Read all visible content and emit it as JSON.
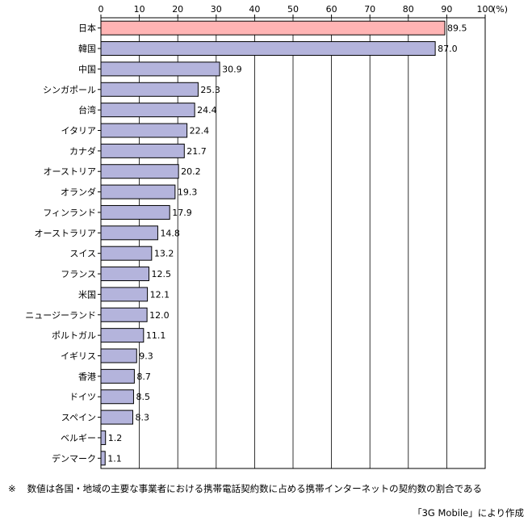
{
  "chart_data": {
    "type": "bar",
    "orientation": "horizontal",
    "categories": [
      "日本",
      "韓国",
      "中国",
      "シンガポール",
      "台湾",
      "イタリア",
      "カナダ",
      "オーストリア",
      "オランダ",
      "フィンランド",
      "オーストラリア",
      "スイス",
      "フランス",
      "米国",
      "ニュージーランド",
      "ポルトガル",
      "イギリス",
      "香港",
      "ドイツ",
      "スペイン",
      "ベルギー",
      "デンマーク"
    ],
    "values": [
      89.5,
      87.0,
      30.9,
      25.3,
      24.4,
      22.4,
      21.7,
      20.2,
      19.3,
      17.9,
      14.8,
      13.2,
      12.5,
      12.1,
      12.0,
      11.1,
      9.3,
      8.7,
      8.5,
      8.3,
      1.2,
      1.1
    ],
    "value_labels": [
      "89.5",
      "87.0",
      "30.9",
      "25.3",
      "24.4",
      "22.4",
      "21.7",
      "20.2",
      "19.3",
      "17.9",
      "14.8",
      "13.2",
      "12.5",
      "12.1",
      "12.0",
      "11.1",
      "9.3",
      "8.7",
      "8.5",
      "8.3",
      "1.2",
      "1.1"
    ],
    "xlim": [
      0,
      100
    ],
    "xticks": [
      "0",
      "10",
      "20",
      "30",
      "40",
      "50",
      "60",
      "70",
      "80",
      "90",
      "100"
    ],
    "x_unit": "(%)",
    "grid": "vertical",
    "colors": {
      "highlight": "#ffb4b4",
      "bar": "#b4b4dc",
      "grid": "#000000",
      "border": "#000000"
    },
    "highlight_index": 0
  },
  "footnote": {
    "mark": "※",
    "text": "数値は各国・地域の主要な事業者における携帯電話契約数に占める携帯インターネットの契約数の割合である"
  },
  "source": "「3G Mobile」により作成"
}
